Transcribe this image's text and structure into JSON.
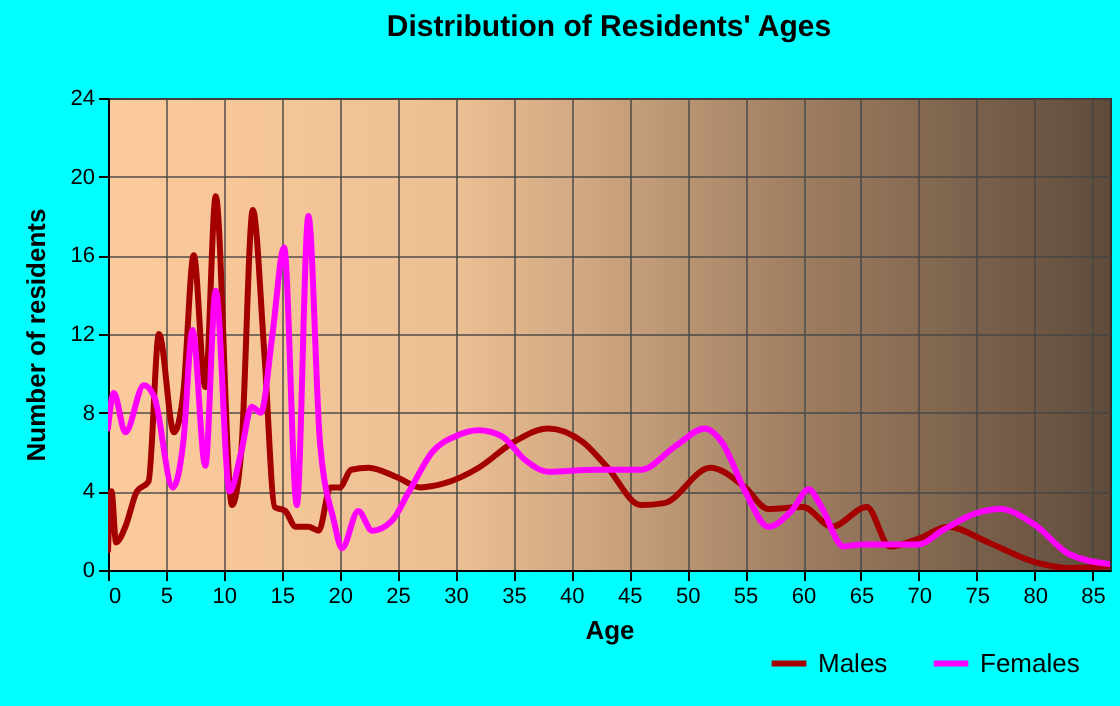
{
  "chart_data": {
    "type": "line",
    "title": "Distribution of Residents' Ages",
    "xlabel": "Age",
    "ylabel": "Number of residents",
    "xlim": [
      0,
      86.5
    ],
    "xticks": [
      0,
      5,
      10,
      15,
      20,
      25,
      30,
      35,
      40,
      45,
      50,
      55,
      60,
      65,
      70,
      75,
      80,
      85
    ],
    "ylim": [
      0,
      24
    ],
    "yticks": [
      0,
      4,
      8,
      12,
      16,
      20,
      24
    ],
    "grid": true,
    "legend": "bottom right",
    "series": [
      {
        "name": "Males",
        "color": "#a50000",
        "x": [
          0,
          0.3,
          0.7,
          1.5,
          2.5,
          3.5,
          4.4,
          5.7,
          6.5,
          7.4,
          8.4,
          9.3,
          10.7,
          11.5,
          12.5,
          13.5,
          14.4,
          15.3,
          16.2,
          17.3,
          18.2,
          19.2,
          20,
          21,
          22.5,
          25,
          27,
          29,
          32,
          35,
          38,
          41,
          43,
          46,
          48,
          52,
          55,
          57,
          60,
          62.5,
          65.5,
          67.5,
          70,
          72.5,
          76,
          80,
          83,
          86.5
        ],
        "values": [
          1,
          4,
          1.4,
          2.2,
          4,
          4.5,
          12,
          7,
          9,
          16,
          9.3,
          19,
          3.3,
          6,
          18.3,
          11,
          3.2,
          3,
          2.2,
          2.2,
          2,
          4.2,
          4.2,
          5.1,
          5.2,
          4.7,
          4.2,
          4.4,
          5.2,
          6.5,
          7.2,
          6.5,
          5.3,
          3.3,
          3.4,
          5.2,
          4.2,
          3.1,
          3.2,
          2.2,
          3.2,
          1.2,
          1.6,
          2.2,
          1.4,
          0.4,
          0.1,
          0.2
        ]
      },
      {
        "name": "Females",
        "color": "#ff00ff",
        "x": [
          0,
          0.5,
          1.5,
          3.1,
          4,
          5.6,
          6.5,
          7.3,
          8.4,
          9.3,
          10.5,
          11.5,
          12.4,
          13.2,
          14.2,
          15.2,
          16.3,
          17.3,
          18.3,
          19.5,
          20.2,
          21.6,
          22.8,
          24.5,
          26,
          28,
          30,
          32,
          34,
          36,
          38,
          42,
          46,
          49,
          51.5,
          53,
          55,
          57,
          59,
          60.5,
          61.5,
          63.5,
          65,
          70,
          72,
          75,
          77,
          80,
          83,
          86.5
        ],
        "values": [
          7.2,
          9,
          7,
          9.4,
          8.8,
          4.2,
          6.5,
          12.2,
          5.3,
          14.2,
          4,
          6,
          8.3,
          8,
          12,
          16.4,
          3.3,
          18,
          6.5,
          2.5,
          1.1,
          3,
          2,
          2.5,
          4,
          6,
          6.8,
          7.1,
          6.8,
          5.6,
          5,
          5.1,
          5.1,
          6.3,
          7.2,
          6.5,
          4,
          2.2,
          3,
          4.1,
          3.3,
          1.2,
          1.3,
          1.3,
          2,
          2.9,
          3.1,
          2.3,
          0.8,
          0.3
        ]
      }
    ]
  }
}
